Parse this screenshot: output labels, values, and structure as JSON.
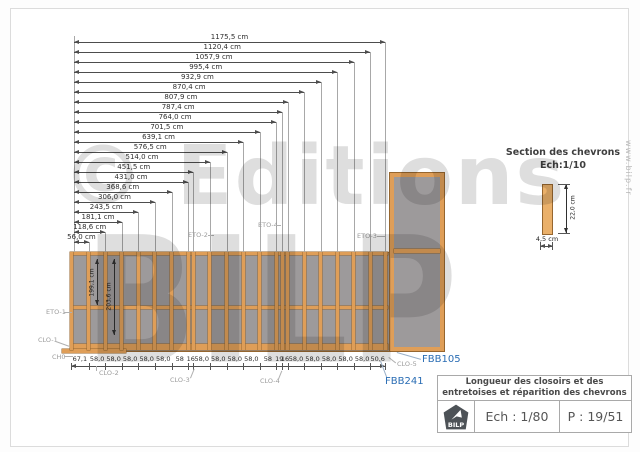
{
  "watermark": {
    "line1": "© Editions",
    "line2": "BILP",
    "website": "www.bilp.fr"
  },
  "drawing": {
    "top_dimensions": [
      {
        "label": "1175,5 cm",
        "cm": 1175.5
      },
      {
        "label": "1120,4 cm",
        "cm": 1120.4
      },
      {
        "label": "1057,9 cm",
        "cm": 1057.9
      },
      {
        "label": "995,4 cm",
        "cm": 995.4
      },
      {
        "label": "932,9 cm",
        "cm": 932.9
      },
      {
        "label": "870,4 cm",
        "cm": 870.4
      },
      {
        "label": "807,9 cm",
        "cm": 807.9
      },
      {
        "label": "787,4 cm",
        "cm": 787.4
      },
      {
        "label": "764,0 cm",
        "cm": 764.0
      },
      {
        "label": "701,5 cm",
        "cm": 701.5
      },
      {
        "label": "639,1 cm",
        "cm": 639.1
      },
      {
        "label": "576,5 cm",
        "cm": 576.5
      },
      {
        "label": "514,0 cm",
        "cm": 514.0
      },
      {
        "label": "451,5 cm",
        "cm": 451.5
      },
      {
        "label": "431,0 cm",
        "cm": 431.0
      },
      {
        "label": "368,6 cm",
        "cm": 368.6
      },
      {
        "label": "306,0 cm",
        "cm": 306.0
      },
      {
        "label": "243,5 cm",
        "cm": 243.5
      },
      {
        "label": "181,1 cm",
        "cm": 181.1
      },
      {
        "label": "118,6 cm",
        "cm": 118.6
      },
      {
        "label": "56,0 cm",
        "cm": 56.0
      }
    ],
    "bottom_dimensions": [
      "67,1",
      "58,0",
      "58,0",
      "58,0",
      "58,0",
      "58,0",
      "58",
      "16",
      "58,0",
      "58,0",
      "58,0",
      "58,0",
      "58",
      "19",
      "16",
      "58,0",
      "58,0",
      "58,0",
      "58,0",
      "58,0",
      "50,6"
    ],
    "vertical_dimensions": [
      "199,1 cm",
      "203,6 cm"
    ],
    "part_labels": {
      "eto1": "ETO-1",
      "eto2": "ETO-2",
      "eto3": "ETO-3",
      "eto4": "ETO-4",
      "clo1": "CLO-1",
      "clo2": "CLO-2",
      "clo3": "CLO-3",
      "clo4": "CLO-4",
      "clo5": "CLO-5",
      "ch0": "CH0",
      "fbb241": "FBB241",
      "fbb105": "FBB105"
    }
  },
  "section_view": {
    "title": "Section des chevrons",
    "scale": "Ech:1/10",
    "height_label": "22,0 cm",
    "width_label": "4,5 cm"
  },
  "title_block": {
    "line1": "Longueur des closoirs et des",
    "line2": "entretoises et réparition des chevrons",
    "scale": "Ech : 1/80",
    "page": "P : 19/51",
    "logo": "BILP"
  },
  "colors": {
    "wood": "#df9e58",
    "wood_dark": "#96662f",
    "panel": "#9d9a9b",
    "blue": "#2a6db4",
    "label_gray": "#9b9b9b"
  }
}
